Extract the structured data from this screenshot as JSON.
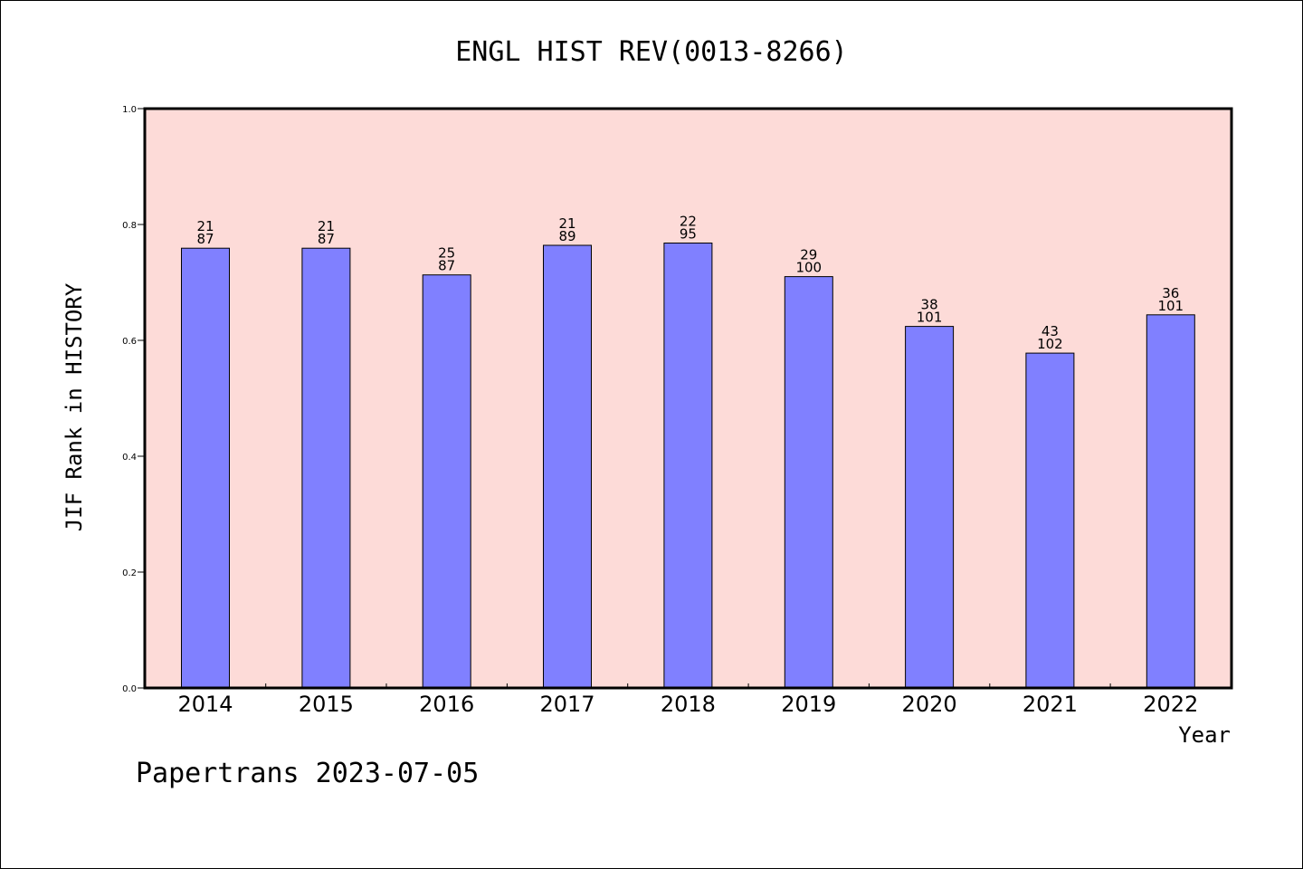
{
  "chart_data": {
    "type": "bar",
    "title": "ENGL HIST REV(0013-8266)",
    "xlabel": "Year",
    "ylabel": "JIF Rank in HISTORY",
    "categories": [
      "2014",
      "2015",
      "2016",
      "2017",
      "2018",
      "2019",
      "2020",
      "2021",
      "2022"
    ],
    "values": [
      0.759,
      0.759,
      0.713,
      0.764,
      0.768,
      0.71,
      0.624,
      0.578,
      0.644
    ],
    "rank": [
      21,
      21,
      25,
      21,
      22,
      29,
      38,
      43,
      36
    ],
    "total": [
      87,
      87,
      87,
      89,
      95,
      100,
      101,
      102,
      101
    ],
    "ylim": [
      0.0,
      1.0
    ],
    "yticks": [
      "0.0",
      "0.2",
      "0.4",
      "0.6",
      "0.8",
      "1.0"
    ],
    "grid": false,
    "colors": {
      "bar": "#8080ff",
      "plot_background": "#fddbd8",
      "axis": "#000000"
    }
  },
  "footer": {
    "text": "Papertrans 2023-07-05"
  }
}
